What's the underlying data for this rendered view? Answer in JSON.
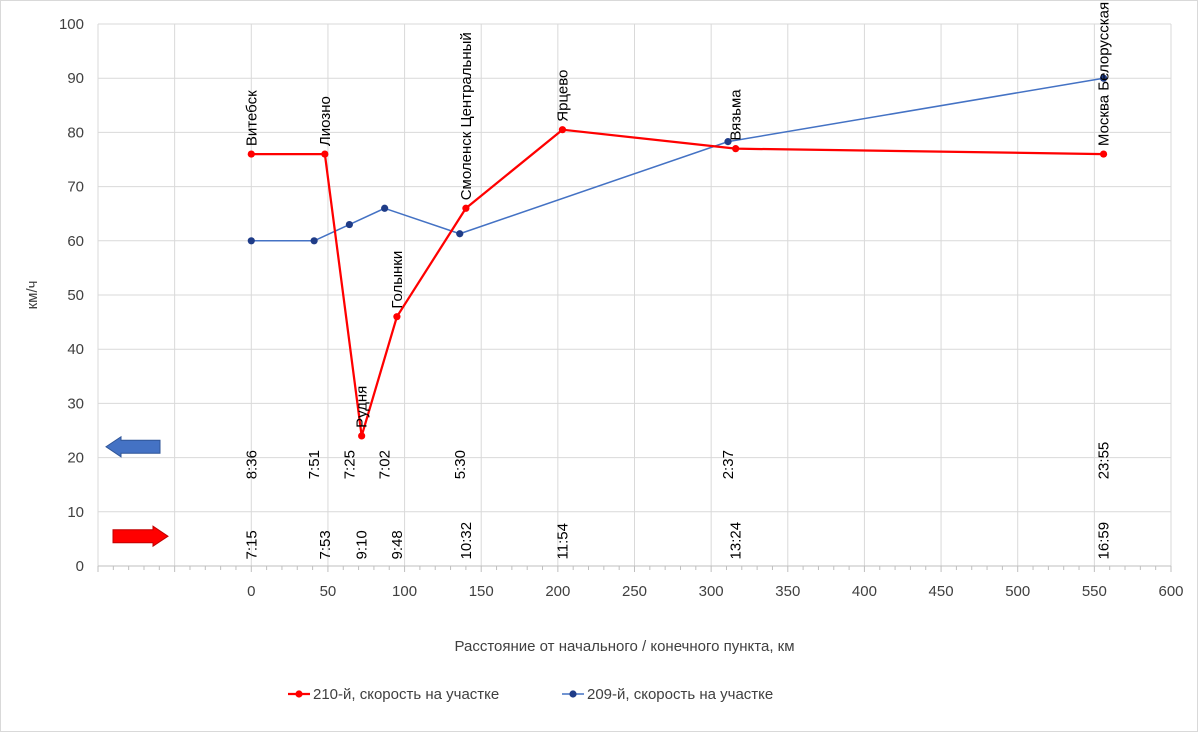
{
  "chart_data": {
    "type": "line",
    "title": "",
    "xlabel": "Расстояние от начального / конечного пункта, км",
    "ylabel": "км/ч",
    "xlim": [
      -100,
      600
    ],
    "ylim": [
      0,
      100
    ],
    "x_ticks": [
      0,
      50,
      100,
      150,
      200,
      250,
      300,
      350,
      400,
      450,
      500,
      550,
      600
    ],
    "x_tick_labels": [
      "0",
      "50",
      "100",
      "150",
      "200",
      "250",
      "300",
      "350",
      "400",
      "450",
      "500",
      "550",
      "600"
    ],
    "y_ticks": [
      0,
      10,
      20,
      30,
      40,
      50,
      60,
      70,
      80,
      90,
      100
    ],
    "y_tick_labels": [
      "0",
      "10",
      "20",
      "30",
      "40",
      "50",
      "60",
      "70",
      "80",
      "90",
      "100"
    ],
    "grid": true,
    "legend_position": "bottom",
    "series": [
      {
        "name": "210-й, скорость на участке",
        "color": "#ff0000",
        "x": [
          0,
          48,
          72,
          95,
          140,
          203,
          316,
          556
        ],
        "y": [
          76,
          76,
          24,
          46,
          66,
          80.5,
          77,
          76
        ]
      },
      {
        "name": "209-й, скорость на участке",
        "color": "#1f3c88",
        "x": [
          0,
          41,
          64,
          87,
          136,
          311,
          556
        ],
        "y": [
          60,
          60,
          63,
          66,
          61.3,
          78.3,
          90
        ]
      }
    ],
    "line_colors": {
      "series_210": "#ff0000",
      "series_209": "#4472c4"
    },
    "station_labels": [
      {
        "name": "Витебск",
        "x": 0,
        "y": 76
      },
      {
        "name": "Лиозно",
        "x": 48,
        "y": 76
      },
      {
        "name": "Рудня",
        "x": 72,
        "y": 24
      },
      {
        "name": "Голынки",
        "x": 95,
        "y": 46
      },
      {
        "name": "Смоленск Центральный",
        "x": 140,
        "y": 66
      },
      {
        "name": "Ярцево",
        "x": 203,
        "y": 80.5
      },
      {
        "name": "Вязьма",
        "x": 316,
        "y": 77
      },
      {
        "name": "Москва Белорусская",
        "x": 556,
        "y": 76
      }
    ],
    "times_209": [
      {
        "x": 0,
        "label": "8:36"
      },
      {
        "x": 41,
        "label": "7:51"
      },
      {
        "x": 64,
        "label": "7:25"
      },
      {
        "x": 87,
        "label": "7:02"
      },
      {
        "x": 136,
        "label": "5:30"
      },
      {
        "x": 311,
        "label": "2:37"
      },
      {
        "x": 556,
        "label": "23:55"
      }
    ],
    "times_210": [
      {
        "x": 0,
        "label": "7:15"
      },
      {
        "x": 48,
        "label": "7:53"
      },
      {
        "x": 72,
        "label": "9:10"
      },
      {
        "x": 95,
        "label": "9:48"
      },
      {
        "x": 140,
        "label": "10:32"
      },
      {
        "x": 203,
        "label": "11:54"
      },
      {
        "x": 316,
        "label": "13:24"
      },
      {
        "x": 556,
        "label": "16:59"
      }
    ],
    "direction_arrows": [
      {
        "name": "arrow-left-209",
        "direction": "left",
        "color": "#4472c4",
        "y": 22
      },
      {
        "name": "arrow-right-210",
        "direction": "right",
        "color": "#ff0000",
        "y": 5.5
      }
    ]
  }
}
